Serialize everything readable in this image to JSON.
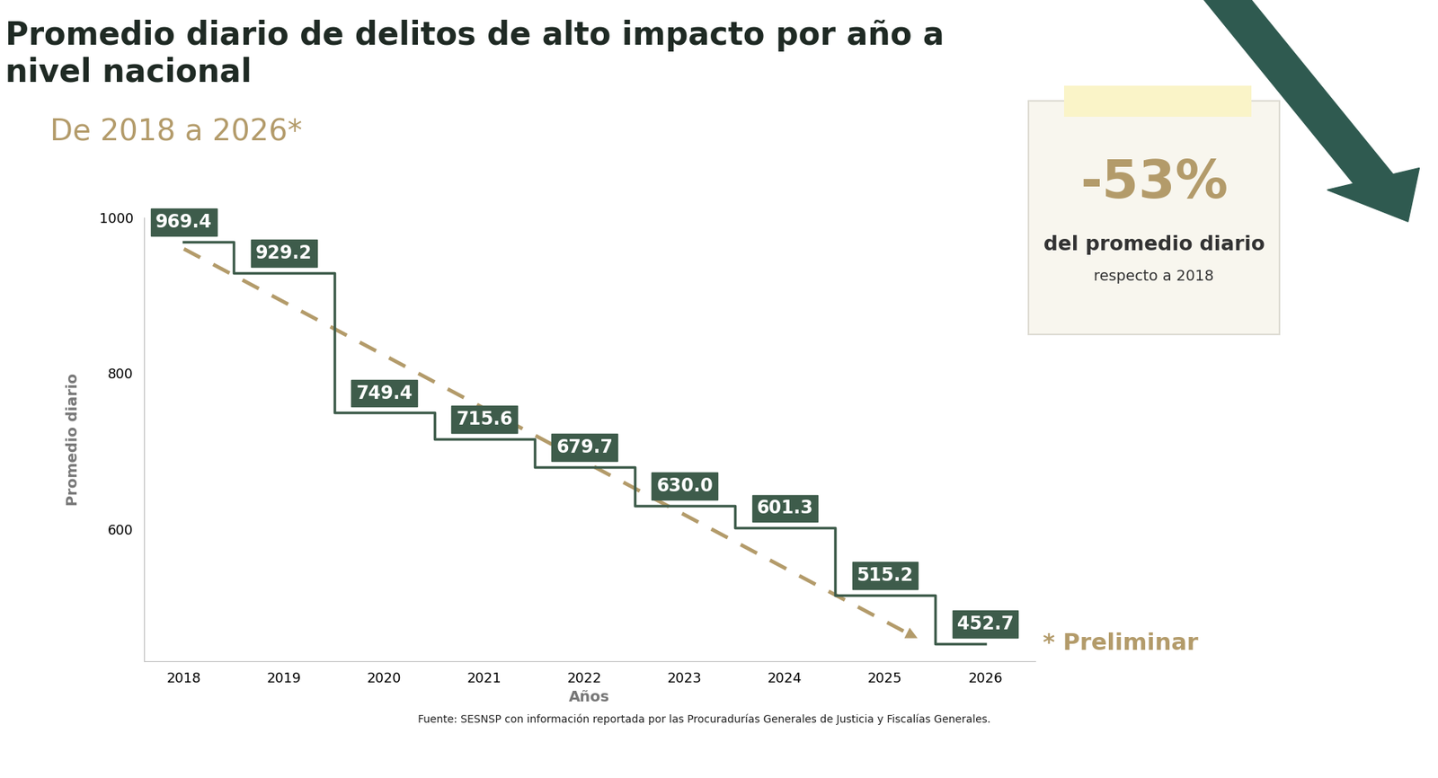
{
  "chart_data": {
    "type": "step",
    "title": "Promedio diario de delitos de alto impacto por año a nivel nacional",
    "subtitle": "De 2018 a 2026*",
    "x_label": "Años",
    "y_label": "Promedio diario",
    "categories": [
      "2018",
      "2019",
      "2020",
      "2021",
      "2022",
      "2023",
      "2024",
      "2025",
      "2026"
    ],
    "values": [
      969.4,
      929.2,
      749.4,
      715.6,
      679.7,
      630.0,
      601.3,
      515.2,
      452.7
    ],
    "color": "#3e5c4b",
    "ylim": [
      430,
      1000
    ],
    "yticks": [
      600,
      800,
      1000
    ],
    "data_labels": true,
    "grid": false,
    "annotations": {
      "change": "-53%",
      "change_text": "del promedio diario",
      "change_note": "respecto a 2018",
      "preliminary": "* Preliminar",
      "source": "Fuente: SESNSP con información reportada por las Procuradurías Generales de Justicia y Fiscalías Generales."
    }
  }
}
